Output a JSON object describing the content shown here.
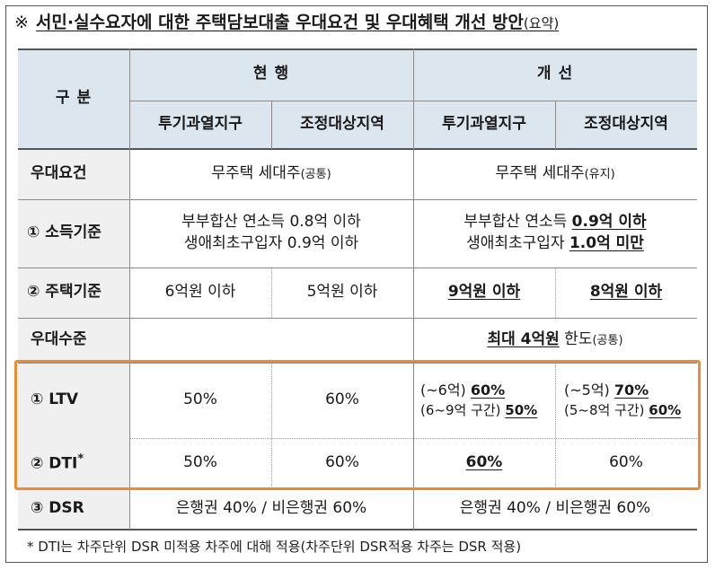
{
  "title": {
    "mark": "※",
    "main": "서민·실수요자에 대한 주택담보대출 우대요건 및 우대혜택 개선 방안",
    "paren": "(요약)"
  },
  "header": {
    "category": "구  분",
    "current": "현  행",
    "improved": "개  선",
    "zone_speculative": "투기과열지구",
    "zone_adjusted": "조정대상지역"
  },
  "rows": {
    "requirement": {
      "label": "우대요건",
      "current": "무주택 세대주",
      "current_note": "(공통)",
      "improved": "무주택 세대주",
      "improved_note": "(유지)"
    },
    "income": {
      "label": "① 소득기준",
      "current_line1": "부부합산 연소득 0.8억 이하",
      "current_line2": "생애최초구입자 0.9억 이하",
      "improved_line1_prefix": "부부합산 연소득 ",
      "improved_line1_value": "0.9억 이하",
      "improved_line2_prefix": "생애최초구입자 ",
      "improved_line2_value": "1.0억 미만"
    },
    "housing": {
      "label": "② 주택기준",
      "current_spec": "6억원 이하",
      "current_adj": "5억원 이하",
      "improved_spec": "9억원 이하",
      "improved_adj": "8억원 이하"
    },
    "level": {
      "label": "우대수준",
      "improved_value": "최대 4억원",
      "improved_suffix": " 한도",
      "improved_note": "(공통)"
    },
    "ltv": {
      "label": "① LTV",
      "current_spec": "50%",
      "current_adj": "60%",
      "improved_spec_a_prefix": "(~6억) ",
      "improved_spec_a_value": "60%",
      "improved_spec_b_prefix": "(6~9억 구간) ",
      "improved_spec_b_value": "50%",
      "improved_adj_a_prefix": "(~5억) ",
      "improved_adj_a_value": "70%",
      "improved_adj_b_prefix": "(5~8억 구간) ",
      "improved_adj_b_value": "60%"
    },
    "dti": {
      "label": "② DTI",
      "label_sup": "*",
      "current_spec": "50%",
      "current_adj": "60%",
      "improved_spec": "60%",
      "improved_adj": "60%"
    },
    "dsr": {
      "label": "③ DSR",
      "current": "은행권 40% / 비은행권 60%",
      "improved": "은행권 40% / 비은행권 60%"
    }
  },
  "footnote": "* DTI는 차주단위 DSR 미적용 차주에 대해 적용(차주단위 DSR적용 차주는 DSR 적용)",
  "colors": {
    "header_bg": "#dbe6ee",
    "category_bg": "#f0f0f0",
    "highlight_border": "#f08a2c"
  }
}
